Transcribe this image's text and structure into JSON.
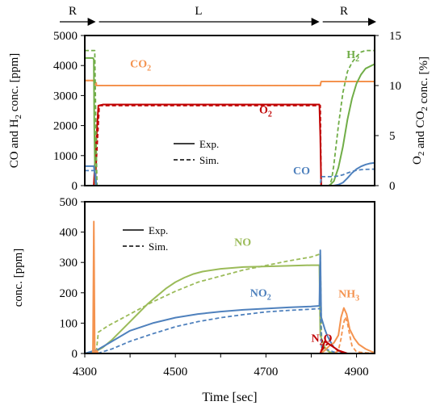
{
  "phase_labels": [
    {
      "text": "R",
      "t_from": 4300,
      "t_to": 4326
    },
    {
      "text": "L",
      "t_from": 4326,
      "t_to": 4820
    },
    {
      "text": "R",
      "t_from": 4820,
      "t_to": 4940
    }
  ],
  "chart_data": [
    {
      "type": "line",
      "panel": "top",
      "xlim": [
        4300,
        4940
      ],
      "ylim": [
        0,
        5000
      ],
      "y2lim": [
        0,
        15
      ],
      "yticks": [
        0,
        1000,
        2000,
        3000,
        4000,
        5000
      ],
      "y2ticks": [
        0,
        5,
        10,
        15
      ],
      "ylabel": "CO and H2 conc. [ppm]",
      "y2label": "O2 and CO2 conc. [%]",
      "legend": {
        "position": "center",
        "solid": "Exp.",
        "dashed": "Sim."
      },
      "series": [
        {
          "name": "CO2",
          "axis": "y2",
          "color": "#f4934f",
          "style": "solid",
          "x": [
            4300,
            4320,
            4321,
            4326,
            4328,
            4340,
            4400,
            4500,
            4600,
            4700,
            4800,
            4818,
            4820,
            4822,
            4900,
            4940
          ],
          "y": [
            10.5,
            10.5,
            10.2,
            10.0,
            10.0,
            10.0,
            10.0,
            10.0,
            10.0,
            10.0,
            10.0,
            10.0,
            10.0,
            10.4,
            10.4,
            10.4
          ]
        },
        {
          "name": "CO2",
          "axis": "y2",
          "color": "#f4934f",
          "style": "dashed",
          "x": [
            4300,
            4325,
            4326,
            4820,
            4821,
            4940
          ],
          "y": [
            10.5,
            10.5,
            10.0,
            10.0,
            10.4,
            10.4
          ]
        },
        {
          "name": "O2",
          "axis": "y2",
          "color": "#c00000",
          "style": "solid",
          "x": [
            4300,
            4320,
            4322,
            4330,
            4340,
            4400,
            4500,
            4600,
            4700,
            4800,
            4818,
            4820,
            4822,
            4940
          ],
          "y": [
            0,
            0,
            2,
            8.0,
            8.1,
            8.1,
            8.1,
            8.1,
            8.1,
            8.1,
            8.1,
            5.0,
            0,
            0
          ]
        },
        {
          "name": "O2",
          "axis": "y2",
          "color": "#c00000",
          "style": "dashed",
          "x": [
            4300,
            4323,
            4325,
            4332,
            4820,
            4822,
            4940
          ],
          "y": [
            0,
            0,
            2,
            8.0,
            8.0,
            0,
            0
          ]
        },
        {
          "name": "H2",
          "axis": "y",
          "color": "#70ad47",
          "style": "solid",
          "x": [
            4300,
            4318,
            4320,
            4321,
            4323,
            4326,
            4800,
            4820,
            4840,
            4850,
            4860,
            4870,
            4880,
            4890,
            4900,
            4910,
            4920,
            4940
          ],
          "y": [
            4250,
            4250,
            4200,
            2000,
            100,
            0,
            0,
            0,
            0,
            150,
            600,
            1300,
            2200,
            2900,
            3400,
            3700,
            3900,
            4050
          ]
        },
        {
          "name": "H2",
          "axis": "y",
          "color": "#70ad47",
          "style": "dashed",
          "x": [
            4300,
            4322,
            4325,
            4327,
            4800,
            4820,
            4840,
            4845,
            4850,
            4860,
            4870,
            4880,
            4890,
            4900,
            4910,
            4920,
            4940
          ],
          "y": [
            4500,
            4500,
            1500,
            0,
            0,
            0,
            0,
            200,
            700,
            2000,
            3100,
            3800,
            4100,
            4300,
            4450,
            4500,
            4500
          ]
        },
        {
          "name": "CO",
          "axis": "y",
          "color": "#4f81bd",
          "style": "solid",
          "x": [
            4300,
            4320,
            4322,
            4325,
            4800,
            4820,
            4850,
            4860,
            4870,
            4880,
            4890,
            4900,
            4910,
            4920,
            4930,
            4940
          ],
          "y": [
            650,
            650,
            400,
            0,
            0,
            0,
            0,
            30,
            100,
            250,
            420,
            550,
            640,
            700,
            740,
            760
          ]
        },
        {
          "name": "CO",
          "axis": "y",
          "color": "#4f81bd",
          "style": "dashed",
          "x": [
            4300,
            4323,
            4326,
            4820,
            4822,
            4850,
            4860,
            4870,
            4880,
            4890,
            4900,
            4910,
            4920,
            4940
          ],
          "y": [
            500,
            500,
            0,
            0,
            300,
            300,
            320,
            360,
            420,
            470,
            510,
            530,
            540,
            550
          ]
        }
      ],
      "labels": [
        {
          "text": "CO",
          "sub": "2",
          "x": 4400,
          "y": 11.8,
          "axis": "y2",
          "color": "#f4934f"
        },
        {
          "text": "O",
          "sub": "2",
          "x": 4685,
          "y": 7.2,
          "axis": "y2",
          "color": "#c00000"
        },
        {
          "text": "H",
          "sub": "2",
          "x": 4878,
          "y": 4250,
          "axis": "y",
          "color": "#70ad47"
        },
        {
          "text": "CO",
          "sub": "",
          "x": 4760,
          "y": 380,
          "axis": "y",
          "color": "#4f81bd"
        }
      ]
    },
    {
      "type": "line",
      "panel": "bottom",
      "xlim": [
        4300,
        4940
      ],
      "ylim": [
        0,
        500
      ],
      "yticks": [
        0,
        100,
        200,
        300,
        400,
        500
      ],
      "xticks": [
        4300,
        4500,
        4700,
        4900
      ],
      "xlabel": "Time [sec]",
      "ylabel": "conc. [ppm]",
      "legend": {
        "position": "top-left",
        "solid": "Exp.",
        "dashed": "Sim."
      },
      "series": [
        {
          "name": "NO",
          "color": "#9bbb59",
          "style": "solid",
          "x": [
            4300,
            4328,
            4340,
            4360,
            4380,
            4400,
            4420,
            4440,
            4460,
            4480,
            4500,
            4520,
            4540,
            4560,
            4600,
            4650,
            4700,
            4750,
            4800,
            4818,
            4820,
            4830,
            4840,
            4860,
            4940
          ],
          "y": [
            0,
            10,
            20,
            45,
            75,
            105,
            135,
            165,
            190,
            215,
            235,
            250,
            262,
            270,
            279,
            285,
            287,
            289,
            291,
            291,
            60,
            20,
            5,
            0,
            0
          ]
        },
        {
          "name": "NO",
          "color": "#9bbb59",
          "style": "dashed",
          "x": [
            4300,
            4325,
            4330,
            4350,
            4400,
            4450,
            4500,
            4550,
            4600,
            4650,
            4700,
            4750,
            4800,
            4820,
            4823,
            4830,
            4840,
            4860,
            4940
          ],
          "y": [
            0,
            0,
            70,
            90,
            130,
            170,
            205,
            235,
            255,
            275,
            290,
            305,
            318,
            328,
            40,
            15,
            5,
            0,
            0
          ]
        },
        {
          "name": "NO2",
          "color": "#4f81bd",
          "style": "solid",
          "x": [
            4300,
            4328,
            4360,
            4400,
            4450,
            4500,
            4550,
            4600,
            4650,
            4700,
            4750,
            4800,
            4818,
            4820,
            4822,
            4830,
            4835,
            4842,
            4850,
            4870,
            4940
          ],
          "y": [
            0,
            12,
            40,
            75,
            100,
            118,
            130,
            138,
            144,
            148,
            152,
            155,
            157,
            340,
            120,
            80,
            60,
            40,
            20,
            0,
            0
          ]
        },
        {
          "name": "NO2",
          "color": "#4f81bd",
          "style": "dashed",
          "x": [
            4300,
            4328,
            4360,
            4400,
            4450,
            4500,
            4550,
            4600,
            4650,
            4700,
            4750,
            4800,
            4820,
            4823,
            4840,
            4860,
            4940
          ],
          "y": [
            0,
            0,
            15,
            40,
            65,
            88,
            105,
            118,
            128,
            137,
            142,
            146,
            148,
            20,
            10,
            0,
            0
          ]
        },
        {
          "name": "NH3",
          "color": "#f4934f",
          "style": "solid",
          "x": [
            4300,
            4318,
            4320,
            4322,
            4324,
            4326,
            4330,
            4800,
            4820,
            4830,
            4840,
            4850,
            4860,
            4866,
            4872,
            4878,
            4885,
            4895,
            4905,
            4920,
            4935,
            4940
          ],
          "y": [
            0,
            0,
            435,
            5,
            0,
            10,
            0,
            0,
            0,
            10,
            25,
            35,
            60,
            120,
            150,
            130,
            80,
            50,
            30,
            15,
            5,
            3
          ]
        },
        {
          "name": "NH3",
          "color": "#f4934f",
          "style": "dashed",
          "x": [
            4300,
            4320,
            4322,
            4325,
            4800,
            4820,
            4850,
            4860,
            4866,
            4870,
            4875,
            4880,
            4885,
            4890,
            4900,
            4940
          ],
          "y": [
            0,
            0,
            5,
            0,
            0,
            0,
            0,
            10,
            50,
            90,
            120,
            100,
            60,
            25,
            5,
            0
          ]
        },
        {
          "name": "N2O",
          "color": "#c00000",
          "style": "solid",
          "x": [
            4300,
            4820,
            4830,
            4840,
            4850,
            4860,
            4870,
            4880,
            4940
          ],
          "y": [
            0,
            0,
            40,
            30,
            20,
            10,
            5,
            0,
            0
          ]
        },
        {
          "name": "N2O",
          "color": "#c00000",
          "style": "dashed",
          "x": [
            4300,
            4820,
            4830,
            4840,
            4850,
            4860,
            4870,
            4940
          ],
          "y": [
            0,
            0,
            25,
            35,
            20,
            8,
            0,
            0
          ]
        }
      ],
      "labels": [
        {
          "text": "NO",
          "sub": "",
          "x": 4630,
          "y": 355,
          "color": "#9bbb59"
        },
        {
          "text": "NO",
          "sub": "2",
          "x": 4665,
          "y": 188,
          "color": "#4f81bd"
        },
        {
          "text": "NH",
          "sub": "3",
          "x": 4860,
          "y": 185,
          "color": "#f4934f"
        },
        {
          "text": "N",
          "sub": "2",
          "suffix": "O",
          "x": 4800,
          "y": 38,
          "color": "#c00000"
        }
      ]
    }
  ]
}
